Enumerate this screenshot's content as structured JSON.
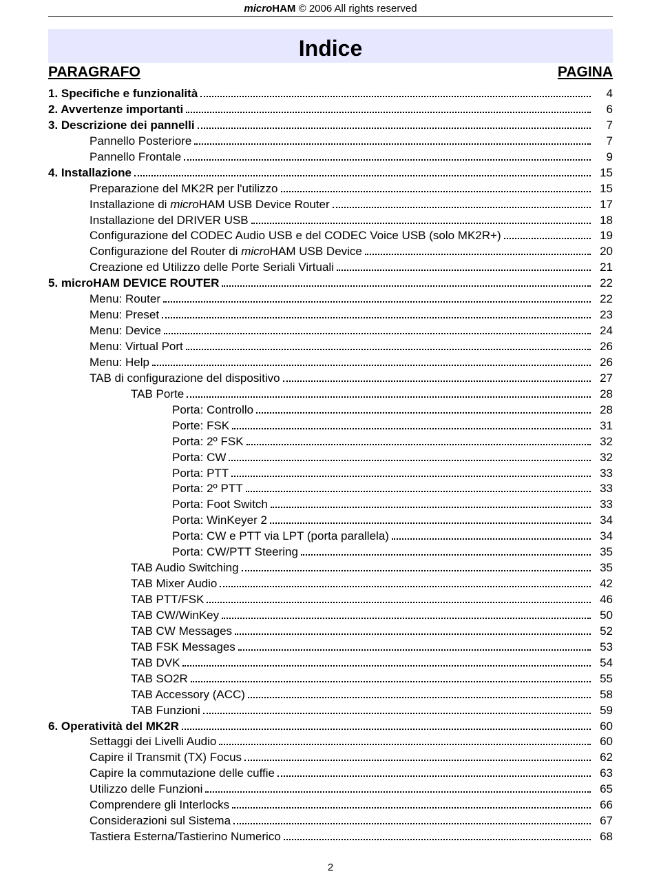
{
  "header": {
    "brand_micro": "micro",
    "brand_ham": "HAM",
    "copyright": " © 2006  All rights reserved"
  },
  "title": "Indice",
  "columns": {
    "left": "PARAGRAFO",
    "right": "PAGINA"
  },
  "page_number": "2",
  "toc": [
    {
      "label": "1. Specifiche e funzionalità",
      "page": "4",
      "indent": 0,
      "bold": true
    },
    {
      "label": "2. Avvertenze importanti",
      "page": "6",
      "indent": 0,
      "bold": true
    },
    {
      "label": "3. Descrizione dei pannelli",
      "page": "7",
      "indent": 0,
      "bold": true
    },
    {
      "label": "Pannello Posteriore",
      "page": "7",
      "indent": 1
    },
    {
      "label": "Pannello Frontale",
      "page": "9",
      "indent": 1
    },
    {
      "label": "4. Installazione",
      "page": "15",
      "indent": 0,
      "bold": true
    },
    {
      "label": "Preparazione del MK2R per l'utilizzo",
      "page": "15",
      "indent": 1
    },
    {
      "label_html": "Installazione di <span class='micro'>micro</span>HAM USB Device Router",
      "page": "17",
      "indent": 1
    },
    {
      "label": "Installazione del DRIVER USB",
      "page": "18",
      "indent": 1
    },
    {
      "label": "Configurazione del CODEC Audio USB e del CODEC Voice USB (solo MK2R+)",
      "page": "19",
      "indent": 1
    },
    {
      "label_html": "Configurazione del Router di <span class='micro'>micro</span>HAM USB Device",
      "page": "20",
      "indent": 1
    },
    {
      "label": "Creazione ed Utilizzo delle Porte Seriali Virtuali",
      "page": "21",
      "indent": 1
    },
    {
      "label": "5. microHAM DEVICE ROUTER",
      "page": "22",
      "indent": 0,
      "bold": true
    },
    {
      "label": "Menu: Router",
      "page": "22",
      "indent": 1
    },
    {
      "label": "Menu: Preset",
      "page": "23",
      "indent": 1
    },
    {
      "label": "Menu: Device",
      "page": "24",
      "indent": 1
    },
    {
      "label": "Menu: Virtual Port",
      "page": "26",
      "indent": 1
    },
    {
      "label": "Menu: Help",
      "page": "26",
      "indent": 1
    },
    {
      "label": "TAB di configurazione del dispositivo",
      "page": "27",
      "indent": 1
    },
    {
      "label": "TAB Porte",
      "page": "28",
      "indent": 2
    },
    {
      "label": "Porta: Controllo ",
      "page": "28",
      "indent": 3
    },
    {
      "label": "Porte: FSK",
      "page": "31",
      "indent": 3
    },
    {
      "label": "Porta: 2º FSK",
      "page": "32",
      "indent": 3
    },
    {
      "label": "Porta: CW",
      "page": "32",
      "indent": 3
    },
    {
      "label": "Porta: PTT",
      "page": "33",
      "indent": 3
    },
    {
      "label": "Porta: 2º PTT",
      "page": "33",
      "indent": 3
    },
    {
      "label": "Porta: Foot Switch",
      "page": "33",
      "indent": 3
    },
    {
      "label": "Porta: WinKeyer 2",
      "page": "34",
      "indent": 3
    },
    {
      "label": "Porta: CW e PTT via LPT (porta parallela)",
      "page": "34",
      "indent": 3
    },
    {
      "label": "Porta: CW/PTT Steering",
      "page": "35",
      "indent": 3
    },
    {
      "label": "TAB Audio Switching",
      "page": "35",
      "indent": 2
    },
    {
      "label": "TAB Mixer Audio",
      "page": "42",
      "indent": 2
    },
    {
      "label": "TAB PTT/FSK",
      "page": "46",
      "indent": 2
    },
    {
      "label": "TAB CW/WinKey",
      "page": "50",
      "indent": 2
    },
    {
      "label": "TAB CW Messages",
      "page": "52",
      "indent": 2
    },
    {
      "label": "TAB FSK Messages",
      "page": "53",
      "indent": 2
    },
    {
      "label": "TAB DVK",
      "page": "54",
      "indent": 2
    },
    {
      "label": "TAB SO2R",
      "page": "55",
      "indent": 2
    },
    {
      "label": "TAB Accessory (ACC) ",
      "page": "58",
      "indent": 2
    },
    {
      "label": "TAB Funzioni ",
      "page": "59",
      "indent": 2
    },
    {
      "label": "6. Operatività del MK2R ",
      "page": "60",
      "indent": 0,
      "bold": true
    },
    {
      "label": "Settaggi dei Livelli Audio",
      "page": "60",
      "indent": 1
    },
    {
      "label": "Capire il Transmit (TX) Focus",
      "page": "62",
      "indent": 1
    },
    {
      "label": "Capire la commutazione delle cuffie",
      "page": "63",
      "indent": 1
    },
    {
      "label": "Utilizzo delle Funzioni",
      "page": "65",
      "indent": 1
    },
    {
      "label": "Comprendere gli Interlocks",
      "page": "66",
      "indent": 1
    },
    {
      "label": "Considerazioni sul Sistema",
      "page": "67",
      "indent": 1
    },
    {
      "label": "Tastiera Esterna/Tastierino Numerico",
      "page": "68",
      "indent": 1
    }
  ]
}
